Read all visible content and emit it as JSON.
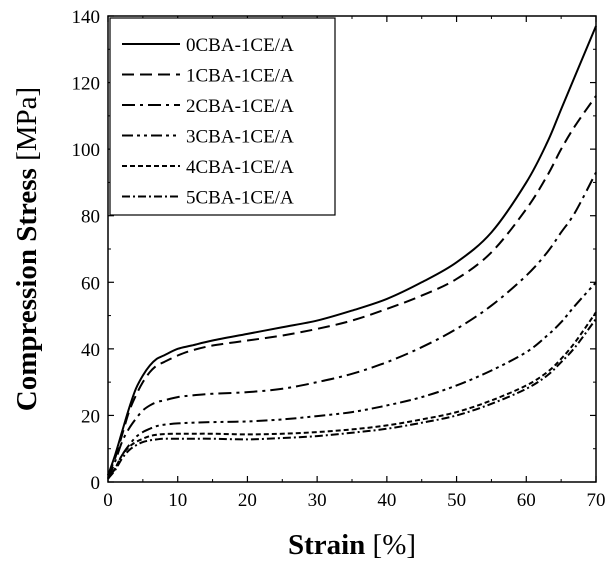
{
  "chart_data": {
    "type": "line",
    "xlabel": {
      "main": "Strain",
      "unit": " [%]"
    },
    "ylabel": {
      "main": "Compression Stress",
      "unit": " [MPa]"
    },
    "xlim": [
      0,
      70
    ],
    "ylim": [
      0,
      140
    ],
    "xticks": [
      0,
      10,
      20,
      30,
      40,
      50,
      60,
      70
    ],
    "yticks": [
      0,
      20,
      40,
      60,
      80,
      100,
      120,
      140
    ],
    "grid": false,
    "legend_position": "top-left",
    "series": [
      {
        "name": "0CBA-1CE/A",
        "dash": "solid",
        "x": [
          0,
          1,
          2,
          3,
          4,
          5,
          6,
          7,
          8,
          10,
          12,
          15,
          20,
          25,
          30,
          35,
          40,
          45,
          50,
          55,
          60,
          63,
          65,
          67,
          70
        ],
        "y": [
          2,
          8,
          15,
          22,
          28,
          32,
          35,
          37,
          38,
          40,
          41,
          42.5,
          44.5,
          46.5,
          48.5,
          51.5,
          55,
          60,
          66,
          75,
          90,
          102,
          112,
          122,
          137
        ]
      },
      {
        "name": "1CBA-1CE/A",
        "dash": "dash",
        "x": [
          0,
          1,
          2,
          3,
          4,
          5,
          6,
          7,
          8,
          10,
          12,
          15,
          20,
          25,
          30,
          35,
          40,
          45,
          50,
          55,
          60,
          63,
          65,
          67,
          70
        ],
        "y": [
          2,
          7,
          14,
          21,
          26,
          30,
          33,
          35,
          36,
          38,
          39.5,
          41,
          42.5,
          44,
          46,
          48.5,
          52,
          56,
          61,
          69,
          82,
          92,
          100,
          107,
          116
        ]
      },
      {
        "name": "2CBA-1CE/A",
        "dash": "dashdot",
        "x": [
          0,
          1,
          2,
          3,
          4,
          5,
          6,
          7,
          8,
          10,
          12,
          15,
          20,
          25,
          30,
          35,
          40,
          45,
          50,
          55,
          60,
          63,
          65,
          67,
          70
        ],
        "y": [
          1,
          6,
          12,
          16,
          19,
          21.5,
          23,
          24,
          24.5,
          25.5,
          26,
          26.5,
          27,
          28,
          30,
          32.5,
          36,
          40.5,
          46,
          53,
          62,
          69,
          75,
          81,
          93
        ]
      },
      {
        "name": "3CBA-1CE/A",
        "dash": "dashdotdot",
        "x": [
          0,
          1,
          2,
          3,
          4,
          5,
          6,
          7,
          8,
          10,
          12,
          15,
          20,
          25,
          30,
          35,
          40,
          45,
          50,
          55,
          60,
          63,
          65,
          67,
          70
        ],
        "y": [
          1,
          4,
          8,
          11,
          13.5,
          15,
          16,
          16.8,
          17.2,
          17.6,
          17.8,
          18,
          18.2,
          18.8,
          19.8,
          21,
          23,
          25.5,
          29,
          33.5,
          39,
          44,
          48,
          53,
          60
        ]
      },
      {
        "name": "4CBA-1CE/A",
        "dash": "shortdash",
        "x": [
          0,
          1,
          2,
          3,
          4,
          5,
          6,
          7,
          8,
          10,
          12,
          15,
          20,
          25,
          30,
          35,
          40,
          45,
          50,
          55,
          60,
          63,
          65,
          67,
          70
        ],
        "y": [
          1,
          4,
          8,
          10.5,
          12,
          13,
          13.8,
          14.2,
          14.4,
          14.5,
          14.5,
          14.5,
          14.3,
          14.5,
          15,
          15.8,
          17,
          18.8,
          21,
          24.5,
          29,
          33,
          37,
          42,
          51
        ]
      },
      {
        "name": "5CBA-1CE/A",
        "dash": "dashdot-dense",
        "x": [
          0,
          1,
          2,
          3,
          4,
          5,
          6,
          7,
          8,
          10,
          12,
          15,
          20,
          25,
          30,
          35,
          40,
          45,
          50,
          55,
          60,
          63,
          65,
          67,
          70
        ],
        "y": [
          1,
          3.5,
          7,
          9.5,
          11,
          12,
          12.5,
          12.8,
          13,
          13,
          13,
          13,
          12.8,
          13.2,
          13.8,
          14.8,
          16,
          17.8,
          20,
          23.5,
          28,
          32,
          36,
          40.5,
          49
        ]
      }
    ]
  }
}
